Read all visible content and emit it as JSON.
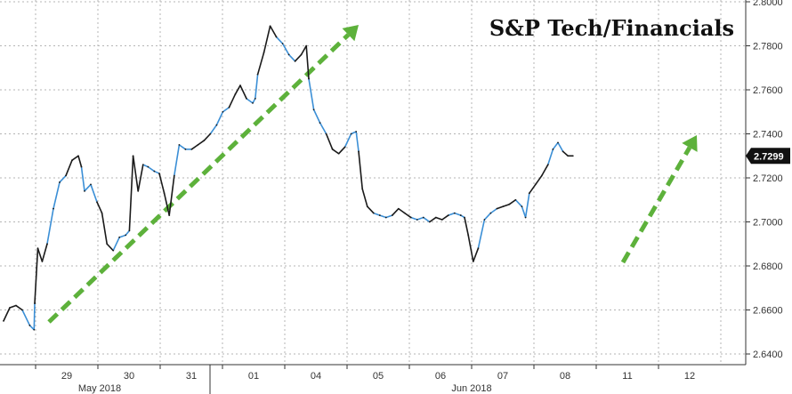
{
  "chart_data": {
    "type": "line",
    "title": "S&P Tech/Financials",
    "xlabel": "",
    "ylabel": "",
    "ylim": [
      2.64,
      2.8
    ],
    "y_ticks": [
      "2.6400",
      "2.6600",
      "2.6800",
      "2.7000",
      "2.7200",
      "2.7400",
      "2.7600",
      "2.7800",
      "2.8000"
    ],
    "y_tick_values": [
      2.64,
      2.66,
      2.68,
      2.7,
      2.72,
      2.74,
      2.76,
      2.78,
      2.8
    ],
    "x_days": [
      "29",
      "30",
      "31",
      "01",
      "04",
      "05",
      "06",
      "07",
      "08",
      "11",
      "12"
    ],
    "months": [
      "May 2018",
      "Jun 2018"
    ],
    "last_value": "2.7299",
    "grid": true,
    "series": [
      {
        "values": [
          [
            0.0,
            2.655
          ],
          [
            0.1,
            2.661
          ],
          [
            0.2,
            2.662
          ],
          [
            0.3,
            2.66
          ],
          [
            0.42,
            2.653
          ],
          [
            0.49,
            2.651
          ],
          [
            0.5,
            2.663
          ],
          [
            0.55,
            2.688
          ],
          [
            0.62,
            2.682
          ],
          [
            0.7,
            2.69
          ],
          [
            0.8,
            2.706
          ],
          [
            0.9,
            2.718
          ],
          [
            1.0,
            2.721
          ],
          [
            1.1,
            2.728
          ],
          [
            1.2,
            2.73
          ],
          [
            1.25,
            2.725
          ],
          [
            1.3,
            2.714
          ],
          [
            1.4,
            2.717
          ],
          [
            1.5,
            2.709
          ],
          [
            1.58,
            2.704
          ],
          [
            1.66,
            2.69
          ],
          [
            1.76,
            2.687
          ],
          [
            1.86,
            2.693
          ],
          [
            1.96,
            2.694
          ],
          [
            2.02,
            2.696
          ],
          [
            2.08,
            2.73
          ],
          [
            2.16,
            2.714
          ],
          [
            2.24,
            2.726
          ],
          [
            2.32,
            2.725
          ],
          [
            2.42,
            2.723
          ],
          [
            2.5,
            2.722
          ],
          [
            2.58,
            2.713
          ],
          [
            2.66,
            2.703
          ],
          [
            2.74,
            2.721
          ],
          [
            2.82,
            2.735
          ],
          [
            2.92,
            2.733
          ],
          [
            3.02,
            2.733
          ],
          [
            3.12,
            2.735
          ],
          [
            3.22,
            2.737
          ],
          [
            3.32,
            2.74
          ],
          [
            3.42,
            2.744
          ],
          [
            3.52,
            2.75
          ],
          [
            3.62,
            2.752
          ],
          [
            3.72,
            2.758
          ],
          [
            3.8,
            2.762
          ],
          [
            3.9,
            2.756
          ],
          [
            4.0,
            2.754
          ],
          [
            4.04,
            2.756
          ],
          [
            4.08,
            2.767
          ],
          [
            4.18,
            2.777
          ],
          [
            4.28,
            2.789
          ],
          [
            4.38,
            2.784
          ],
          [
            4.48,
            2.781
          ],
          [
            4.58,
            2.776
          ],
          [
            4.68,
            2.773
          ],
          [
            4.78,
            2.776
          ],
          [
            4.86,
            2.78
          ],
          [
            4.9,
            2.765
          ],
          [
            4.98,
            2.751
          ],
          [
            5.08,
            2.745
          ],
          [
            5.18,
            2.74
          ],
          [
            5.28,
            2.733
          ],
          [
            5.38,
            2.731
          ],
          [
            5.48,
            2.734
          ],
          [
            5.58,
            2.74
          ],
          [
            5.66,
            2.741
          ],
          [
            5.7,
            2.732
          ],
          [
            5.76,
            2.715
          ],
          [
            5.84,
            2.707
          ],
          [
            5.94,
            2.704
          ],
          [
            6.04,
            2.703
          ],
          [
            6.14,
            2.702
          ],
          [
            6.24,
            2.703
          ],
          [
            6.34,
            2.706
          ],
          [
            6.44,
            2.704
          ],
          [
            6.54,
            2.702
          ],
          [
            6.64,
            2.701
          ],
          [
            6.74,
            2.702
          ],
          [
            6.84,
            2.7
          ],
          [
            6.94,
            2.702
          ],
          [
            7.04,
            2.701
          ],
          [
            7.14,
            2.703
          ],
          [
            7.24,
            2.704
          ],
          [
            7.34,
            2.703
          ],
          [
            7.4,
            2.702
          ],
          [
            7.46,
            2.694
          ],
          [
            7.54,
            2.682
          ],
          [
            7.62,
            2.688
          ],
          [
            7.72,
            2.701
          ],
          [
            7.82,
            2.704
          ],
          [
            7.92,
            2.706
          ],
          [
            8.02,
            2.707
          ],
          [
            8.12,
            2.708
          ],
          [
            8.22,
            2.71
          ],
          [
            8.32,
            2.707
          ],
          [
            8.38,
            2.702
          ],
          [
            8.44,
            2.713
          ],
          [
            8.54,
            2.717
          ],
          [
            8.64,
            2.721
          ],
          [
            8.74,
            2.726
          ],
          [
            8.82,
            2.733
          ],
          [
            8.9,
            2.736
          ],
          [
            8.98,
            2.732
          ],
          [
            9.06,
            2.73
          ],
          [
            9.14,
            2.73
          ]
        ]
      }
    ]
  },
  "colors": {
    "line_a": "#1a1a1a",
    "line_b": "#3b8fd6",
    "arrow": "#5db13b",
    "grid": "#b5b5b5",
    "badge_bg": "#111111"
  }
}
